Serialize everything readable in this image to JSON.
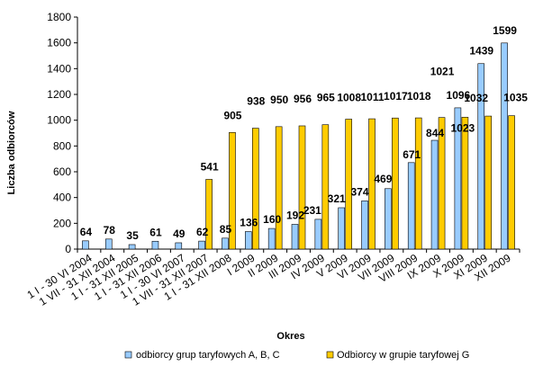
{
  "chart_data": {
    "type": "bar",
    "title": "",
    "xlabel": "Okres",
    "ylabel": "Liczba odbiorców",
    "ylim": [
      0,
      1800
    ],
    "yticks": [
      0,
      200,
      400,
      600,
      800,
      1000,
      1200,
      1400,
      1600,
      1800
    ],
    "grid": false,
    "legend_position": "bottom",
    "categories": [
      "1 I - 30 VI 2004",
      "1 VII - 31 XII 2004",
      "1 I - 31 XII 2005",
      "1 I - 31 XII 2006",
      "1 I - 30 VI 2007",
      "1 VII - 31 XII 2007",
      "1 I - 31 XII 2008",
      "I 2009",
      "II 2009",
      "III 2009",
      "IV 2009",
      "V 2009",
      "VI 2009",
      "VII 2009",
      "VIII 2009",
      "IX 2009",
      "X 2009",
      "XI 2009",
      "XII 2009"
    ],
    "series": [
      {
        "name": "odbiorcy grup taryfowych A, B, C",
        "color": "#99ccff",
        "values": [
          64,
          78,
          35,
          61,
          49,
          62,
          85,
          136,
          160,
          192,
          231,
          321,
          374,
          469,
          671,
          844,
          1096,
          1439,
          1599
        ]
      },
      {
        "name": "Odbiorcy w grupie taryfowej G",
        "color": "#ffcc00",
        "values": [
          null,
          null,
          null,
          null,
          null,
          541,
          905,
          938,
          950,
          956,
          965,
          1008,
          1011,
          1017,
          1018,
          1021,
          1023,
          1032,
          1035
        ]
      }
    ]
  }
}
